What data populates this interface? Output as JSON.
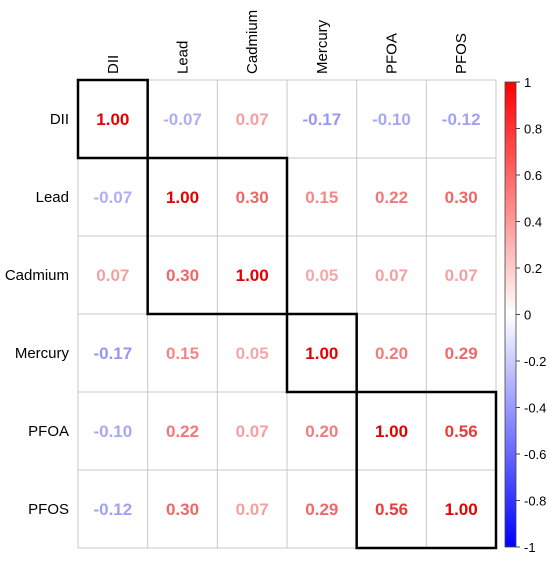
{
  "chart_data": {
    "type": "heatmap",
    "variables": [
      "DII",
      "Lead",
      "Cadmium",
      "Mercury",
      "PFOA",
      "PFOS"
    ],
    "row_labels": [
      "DII",
      "Lead",
      "Cadmium",
      "Mercury",
      "PFOA",
      "PFOS"
    ],
    "column_labels": [
      "DII",
      "Lead",
      "Cadmium",
      "Mercury",
      "PFOA",
      "PFOS"
    ],
    "matrix": [
      [
        1.0,
        -0.07,
        0.07,
        -0.17,
        -0.1,
        -0.12
      ],
      [
        -0.07,
        1.0,
        0.3,
        0.15,
        0.22,
        0.3
      ],
      [
        0.07,
        0.3,
        1.0,
        0.05,
        0.07,
        0.07
      ],
      [
        -0.17,
        0.15,
        0.05,
        1.0,
        0.2,
        0.29
      ],
      [
        -0.1,
        0.22,
        0.07,
        0.2,
        1.0,
        0.56
      ],
      [
        -0.12,
        0.3,
        0.07,
        0.29,
        0.56,
        1.0
      ]
    ],
    "cell_labels": [
      [
        "1.00",
        "-0.07",
        "0.07",
        "-0.17",
        "-0.10",
        "-0.12"
      ],
      [
        "-0.07",
        "1.00",
        "0.30",
        "0.15",
        "0.22",
        "0.30"
      ],
      [
        "0.07",
        "0.30",
        "1.00",
        "0.05",
        "0.07",
        "0.07"
      ],
      [
        "-0.17",
        "0.15",
        "0.05",
        "1.00",
        "0.20",
        "0.29"
      ],
      [
        "-0.10",
        "0.22",
        "0.07",
        "0.20",
        "1.00",
        "0.56"
      ],
      [
        "-0.12",
        "0.30",
        "0.07",
        "0.29",
        "0.56",
        "1.00"
      ]
    ],
    "clusters": [
      {
        "from": "DII",
        "to": "DII"
      },
      {
        "from": "Lead",
        "to": "Cadmium"
      },
      {
        "from": "Mercury",
        "to": "Mercury"
      },
      {
        "from": "PFOA",
        "to": "PFOS"
      }
    ],
    "colorbar": {
      "range": [
        -1,
        1
      ],
      "ticks": [
        -1,
        -0.8,
        -0.6,
        -0.4,
        -0.2,
        0,
        0.2,
        0.4,
        0.6,
        0.8,
        1
      ],
      "tick_labels": [
        "-1",
        "-0.8",
        "-0.6",
        "-0.4",
        "-0.2",
        "0",
        "0.2",
        "0.4",
        "0.6",
        "0.8",
        "1"
      ],
      "low_color": "#0000ff",
      "mid_color": "#ffffff",
      "high_color": "#ff0000",
      "placement": "right"
    },
    "grid": true,
    "title": "",
    "xlabel": "",
    "ylabel": ""
  }
}
